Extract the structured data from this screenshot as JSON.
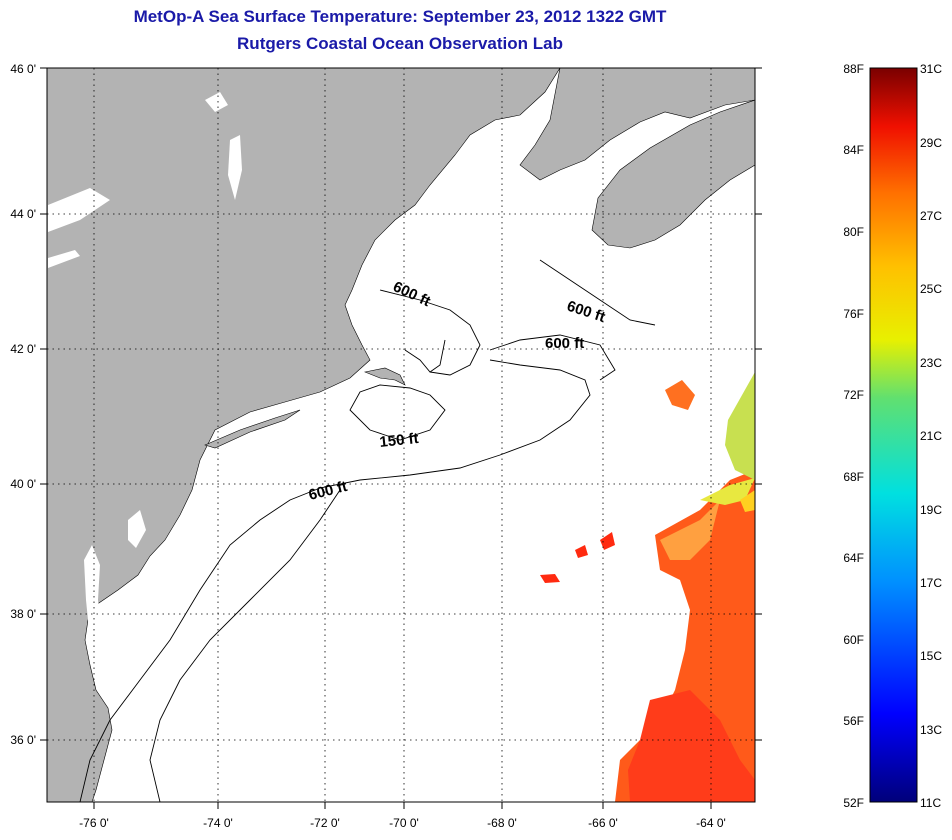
{
  "title": "MetOp-A Sea Surface Temperature:  September 23, 2012 1322 GMT",
  "subtitle": "Rutgers Coastal Ocean Observation Lab",
  "map": {
    "lon_ticks": [
      "-76 0'",
      "-74 0'",
      "-72 0'",
      "-70 0'",
      "-68 0'",
      "-66 0'",
      "-64 0'"
    ],
    "lat_ticks": [
      "46 0'",
      "44 0'",
      "42 0'",
      "40 0'",
      "38 0'",
      "36 0'"
    ],
    "contour_labels": [
      "600 ft",
      "600 ft",
      "600 ft",
      "150 ft",
      "600 ft"
    ],
    "colors": {
      "land": "#b3b3b3",
      "ocean": "#ffffff",
      "grid": "#000000"
    }
  },
  "colorbar": {
    "fahrenheit": [
      "88F",
      "84F",
      "80F",
      "76F",
      "72F",
      "68F",
      "64F",
      "60F",
      "56F",
      "52F"
    ],
    "celsius": [
      "31C",
      "29C",
      "27C",
      "25C",
      "23C",
      "21C",
      "19C",
      "17C",
      "15C",
      "13C",
      "11C"
    ]
  }
}
